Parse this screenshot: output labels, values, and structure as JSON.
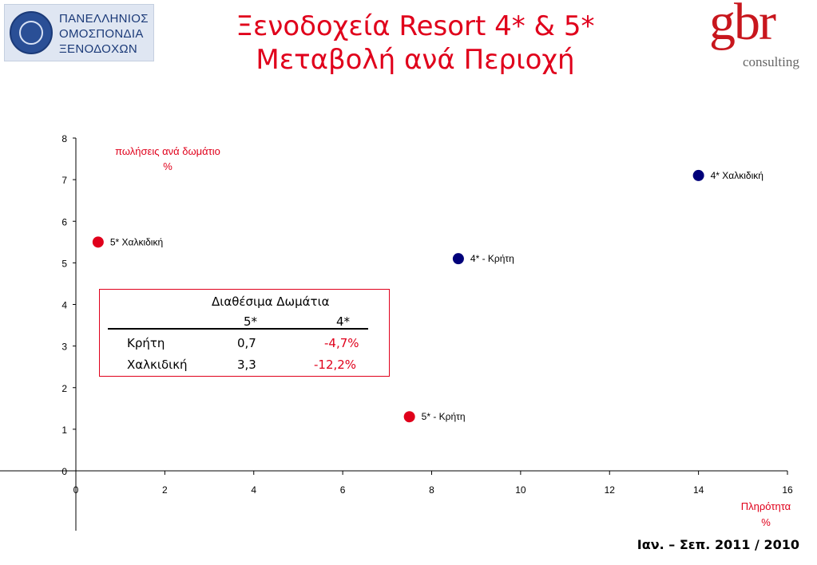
{
  "header": {
    "title_line1": "Ξενοδοχεία Resort 4* & 5*",
    "title_line2": "Μεταβολή ανά Περιοχή",
    "left_logo": {
      "lines": [
        "ΠΑΝΕΛΛΗΝΙΟΣ",
        "ΟΜΟΣΠΟΝΔΙΑ",
        "ΞΕΝΟΔΟΧΩΝ"
      ]
    },
    "right_logo": {
      "brand": "gbr",
      "sub": "consulting",
      "color": "#c8161d"
    }
  },
  "chart_data": {
    "type": "scatter",
    "xlim": [
      0,
      16
    ],
    "ylim": [
      0,
      8
    ],
    "xticks": [
      "0",
      "2",
      "4",
      "6",
      "8",
      "10",
      "12",
      "14",
      "16"
    ],
    "yticks": [
      "0",
      "1",
      "2",
      "3",
      "4",
      "5",
      "6",
      "7",
      "8"
    ],
    "ylabel_line1": "πωλήσεις ανά δωμάτιο",
    "ylabel_line2": "%",
    "xlabel_line1": "Πληρότητα",
    "xlabel_line2": "%",
    "grid": false,
    "colors": {
      "red": "#e0001b",
      "navy": "#00007a"
    },
    "points": [
      {
        "label": "5* Χαλκιδική",
        "x": 0.5,
        "y": 5.5,
        "color": "#e0001b"
      },
      {
        "label": "4* Χαλκιδική",
        "x": 14.0,
        "y": 7.1,
        "color": "#00007a"
      },
      {
        "label": "4* - Κρήτη",
        "x": 8.6,
        "y": 5.1,
        "color": "#00007a"
      },
      {
        "label": "5* - Κρήτη",
        "x": 7.5,
        "y": 1.3,
        "color": "#e0001b"
      }
    ]
  },
  "table": {
    "title": "Διαθέσιμα Δωμάτια",
    "columns": [
      "5*",
      "4*"
    ],
    "rows": [
      {
        "name": "Κρήτη",
        "v5": "0,7",
        "v4": "-4,7%"
      },
      {
        "name": "Χαλκιδική",
        "v5": "3,3",
        "v4": "-12,2%"
      }
    ]
  },
  "footer": {
    "period": "Ιαν. – Σεπ. 2011 / 2010"
  }
}
